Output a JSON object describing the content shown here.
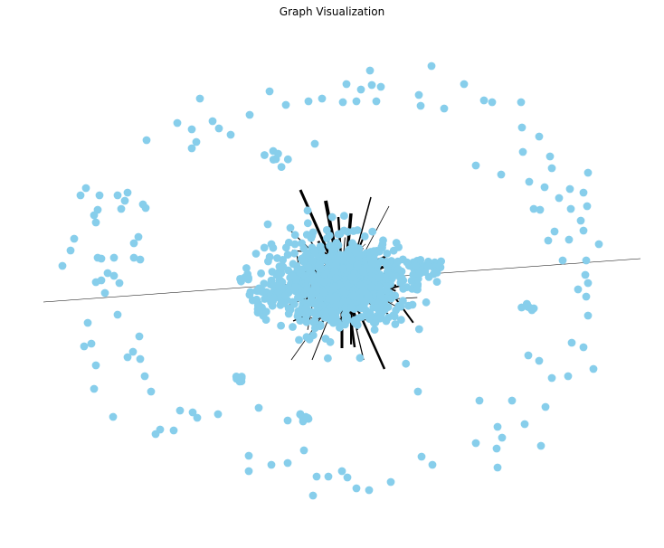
{
  "title": "Graph Visualization",
  "colors": {
    "node": "#87CEEB",
    "edge": "#000000",
    "background": "#ffffff"
  }
}
